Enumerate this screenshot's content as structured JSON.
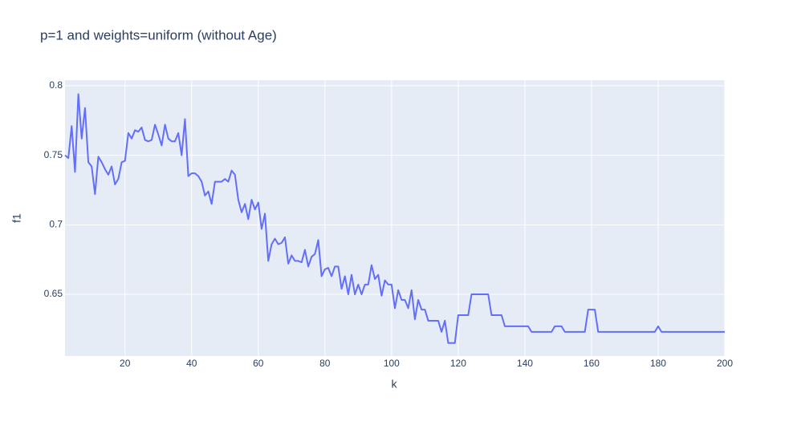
{
  "chart_data": {
    "type": "line",
    "title": "p=1 and weights=uniform (without Age)",
    "x_label": "k",
    "y_label": "f1",
    "x": [
      2,
      3,
      4,
      5,
      6,
      7,
      8,
      9,
      10,
      11,
      12,
      13,
      14,
      15,
      16,
      17,
      18,
      19,
      20,
      21,
      22,
      23,
      24,
      25,
      26,
      27,
      28,
      29,
      30,
      31,
      32,
      33,
      34,
      35,
      36,
      37,
      38,
      39,
      40,
      41,
      42,
      43,
      44,
      45,
      46,
      47,
      48,
      49,
      50,
      51,
      52,
      53,
      54,
      55,
      56,
      57,
      58,
      59,
      60,
      61,
      62,
      63,
      64,
      65,
      66,
      67,
      68,
      69,
      70,
      71,
      72,
      73,
      74,
      75,
      76,
      77,
      78,
      79,
      80,
      81,
      82,
      83,
      84,
      85,
      86,
      87,
      88,
      89,
      90,
      91,
      92,
      93,
      94,
      95,
      96,
      97,
      98,
      99,
      100,
      101,
      102,
      103,
      104,
      105,
      106,
      107,
      108,
      109,
      110,
      111,
      112,
      113,
      114,
      115,
      116,
      117,
      118,
      119,
      120,
      121,
      122,
      123,
      124,
      125,
      126,
      127,
      128,
      129,
      130,
      131,
      132,
      133,
      134,
      135,
      136,
      137,
      138,
      139,
      140,
      141,
      142,
      143,
      144,
      145,
      146,
      147,
      148,
      149,
      150,
      151,
      152,
      153,
      154,
      155,
      156,
      157,
      158,
      159,
      160,
      161,
      162,
      163,
      164,
      165,
      166,
      167,
      168,
      169,
      170,
      171,
      172,
      173,
      174,
      175,
      176,
      177,
      178,
      179,
      180,
      181,
      182,
      183,
      184,
      185,
      186,
      187,
      188,
      189,
      190,
      191,
      192,
      193,
      194,
      195,
      196,
      197,
      198,
      199,
      200
    ],
    "values": [
      0.75,
      0.748,
      0.771,
      0.738,
      0.794,
      0.762,
      0.784,
      0.745,
      0.742,
      0.722,
      0.749,
      0.745,
      0.74,
      0.736,
      0.742,
      0.729,
      0.733,
      0.745,
      0.746,
      0.766,
      0.762,
      0.768,
      0.767,
      0.77,
      0.761,
      0.76,
      0.761,
      0.772,
      0.765,
      0.757,
      0.772,
      0.762,
      0.76,
      0.76,
      0.766,
      0.75,
      0.776,
      0.735,
      0.737,
      0.737,
      0.735,
      0.731,
      0.721,
      0.724,
      0.715,
      0.731,
      0.731,
      0.731,
      0.733,
      0.731,
      0.739,
      0.736,
      0.718,
      0.709,
      0.715,
      0.704,
      0.718,
      0.711,
      0.716,
      0.697,
      0.708,
      0.674,
      0.686,
      0.69,
      0.686,
      0.687,
      0.691,
      0.672,
      0.678,
      0.674,
      0.674,
      0.673,
      0.682,
      0.67,
      0.677,
      0.679,
      0.689,
      0.663,
      0.668,
      0.669,
      0.663,
      0.67,
      0.67,
      0.654,
      0.663,
      0.65,
      0.664,
      0.65,
      0.657,
      0.65,
      0.657,
      0.657,
      0.671,
      0.661,
      0.664,
      0.649,
      0.66,
      0.657,
      0.657,
      0.64,
      0.653,
      0.646,
      0.646,
      0.64,
      0.653,
      0.632,
      0.646,
      0.639,
      0.639,
      0.631,
      0.631,
      0.631,
      0.631,
      0.623,
      0.631,
      0.615,
      0.615,
      0.615,
      0.635,
      0.635,
      0.635,
      0.635,
      0.65,
      0.65,
      0.65,
      0.65,
      0.65,
      0.65,
      0.635,
      0.635,
      0.635,
      0.635,
      0.627,
      0.627,
      0.627,
      0.627,
      0.627,
      0.627,
      0.627,
      0.627,
      0.623,
      0.623,
      0.623,
      0.623,
      0.623,
      0.623,
      0.623,
      0.627,
      0.627,
      0.627,
      0.623,
      0.623,
      0.623,
      0.623,
      0.623,
      0.623,
      0.623,
      0.639,
      0.639,
      0.639,
      0.623,
      0.623,
      0.623,
      0.623,
      0.623,
      0.623,
      0.623,
      0.623,
      0.623,
      0.623,
      0.623,
      0.623,
      0.623,
      0.623,
      0.623,
      0.623,
      0.623,
      0.623,
      0.627,
      0.623,
      0.623,
      0.623,
      0.623,
      0.623,
      0.623,
      0.623,
      0.623,
      0.623,
      0.623,
      0.623,
      0.623,
      0.623,
      0.623,
      0.623,
      0.623,
      0.623,
      0.623,
      0.623,
      0.623
    ],
    "color": "#636efa",
    "xlim": [
      2,
      200
    ],
    "xticks": [
      20,
      40,
      60,
      80,
      100,
      120,
      140,
      160,
      180,
      200
    ],
    "ylim": [
      0.6056,
      0.804
    ],
    "yticks": [
      0.65,
      0.7,
      0.75,
      0.8
    ],
    "grid": true
  }
}
